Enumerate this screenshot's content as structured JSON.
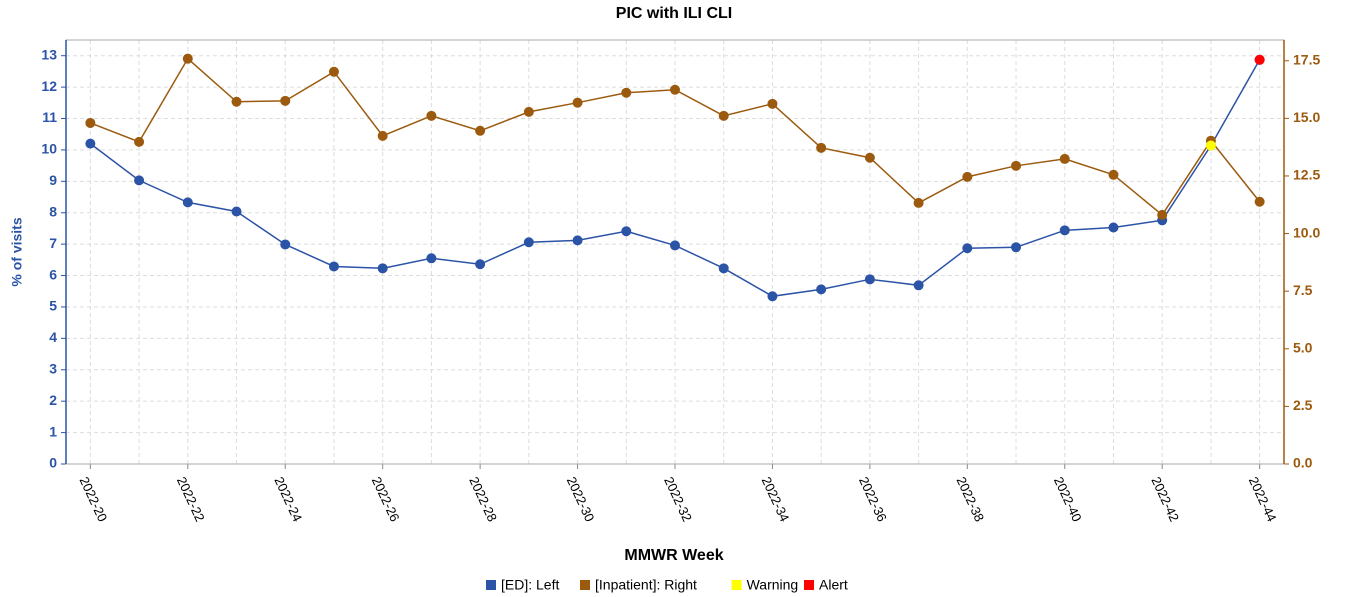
{
  "chart_data": {
    "type": "line",
    "title": "PIC with ILI CLI",
    "xlabel": "MMWR Week",
    "ylabel": "% of visits",
    "categories": [
      "2022-20",
      null,
      "2022-22",
      null,
      "2022-24",
      null,
      "2022-26",
      null,
      "2022-28",
      null,
      "2022-30",
      null,
      "2022-32",
      null,
      "2022-34",
      null,
      "2022-36",
      null,
      "2022-38",
      null,
      "2022-40",
      null,
      "2022-42",
      null,
      "2022-44"
    ],
    "ylim": [
      0,
      13.5
    ],
    "yticks": [
      0,
      1,
      2,
      3,
      4,
      5,
      6,
      7,
      8,
      9,
      10,
      11,
      12,
      13
    ],
    "y2lim": [
      0,
      18.4
    ],
    "y2ticks": [
      {
        "value": 0,
        "label": "0.0"
      },
      2.5,
      {
        "value": 5,
        "label": "5.0"
      },
      7.5,
      {
        "value": 10,
        "label": "10.0"
      },
      12.5,
      {
        "value": 15,
        "label": "15.0"
      },
      17.5
    ],
    "grid": true,
    "legend": "bottom",
    "series": [
      {
        "name": "[ED]: Left",
        "color": "#2b53a6",
        "axis": "y",
        "markers_only": false,
        "values": [
          10.2,
          9.03,
          8.33,
          8.04,
          6.99,
          6.29,
          6.23,
          6.55,
          6.36,
          7.06,
          7.12,
          7.41,
          6.96,
          6.23,
          5.34,
          5.56,
          5.88,
          5.69,
          6.87,
          6.9,
          7.44,
          7.53,
          7.76,
          10.14,
          12.87
        ]
      },
      {
        "name": "[Inpatient]: Right",
        "color": "#9c5a0f",
        "axis": "y2",
        "markers_only": false,
        "values": [
          14.8,
          13.98,
          17.59,
          15.72,
          15.76,
          17.02,
          14.24,
          15.11,
          14.46,
          15.28,
          15.68,
          16.11,
          16.24,
          15.11,
          15.63,
          13.72,
          13.29,
          11.33,
          12.46,
          12.94,
          13.24,
          12.55,
          10.81,
          14.03,
          11.38
        ]
      },
      {
        "name": "Warning",
        "color": "#ffff00",
        "axis": "y",
        "markers_only": true,
        "values": [
          null,
          null,
          null,
          null,
          null,
          null,
          null,
          null,
          null,
          null,
          null,
          null,
          null,
          null,
          null,
          null,
          null,
          null,
          null,
          null,
          null,
          null,
          null,
          10.14,
          null
        ]
      },
      {
        "name": "Alert",
        "color": "#ff0000",
        "axis": "y",
        "markers_only": true,
        "values": [
          null,
          null,
          null,
          null,
          null,
          null,
          null,
          null,
          null,
          null,
          null,
          null,
          null,
          null,
          null,
          null,
          null,
          null,
          null,
          null,
          null,
          null,
          null,
          null,
          12.87
        ]
      }
    ]
  }
}
